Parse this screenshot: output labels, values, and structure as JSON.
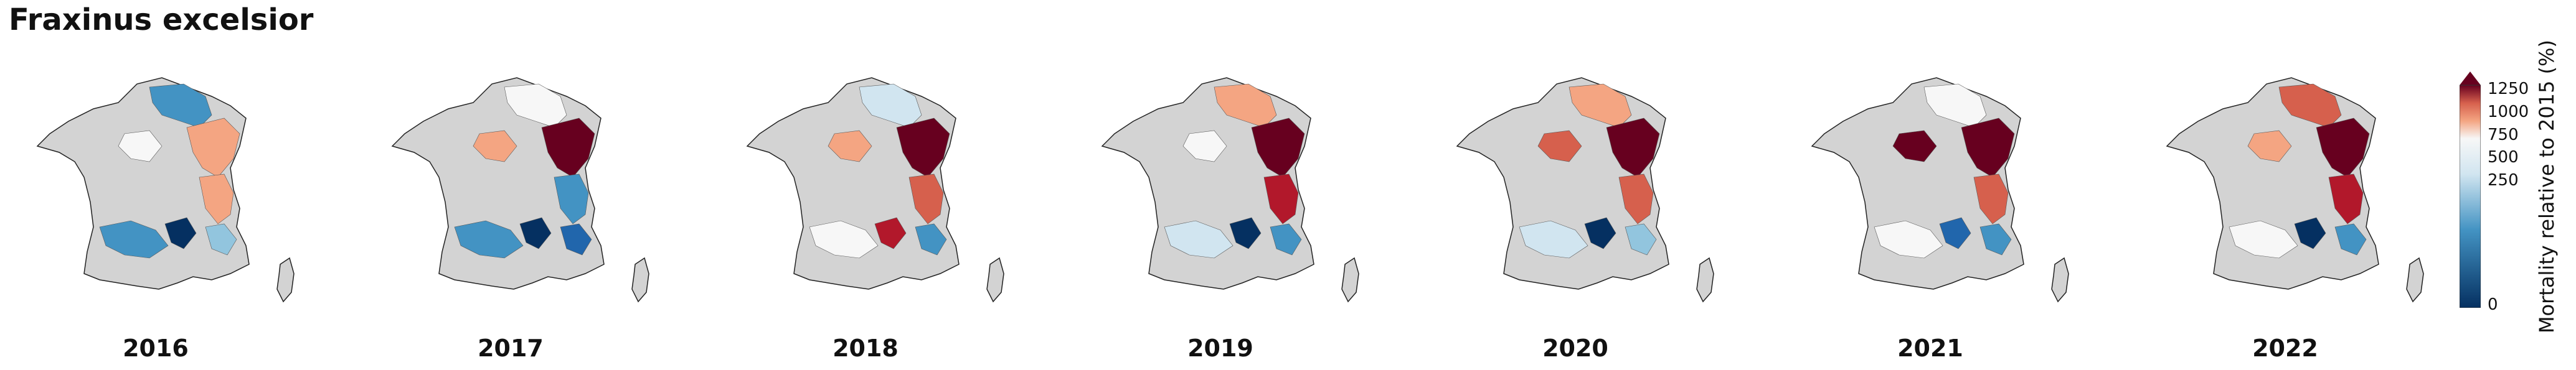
{
  "title": "Fraxinus excelsior",
  "colorbar": {
    "label": "Mortality relative to 2015 (%)",
    "ticks": [
      "1250",
      "1000",
      "750",
      "500",
      "250",
      "0"
    ],
    "colors": {
      "high": "#67001f",
      "mid_high": "#d6604d",
      "neutral": "#f7f7f7",
      "low": "#2166ac",
      "lowest": "#053061",
      "nodata": "#d3d3d3"
    }
  },
  "panels": [
    {
      "year": "2016"
    },
    {
      "year": "2017"
    },
    {
      "year": "2018"
    },
    {
      "year": "2019"
    },
    {
      "year": "2020"
    },
    {
      "year": "2021"
    },
    {
      "year": "2022"
    }
  ]
}
